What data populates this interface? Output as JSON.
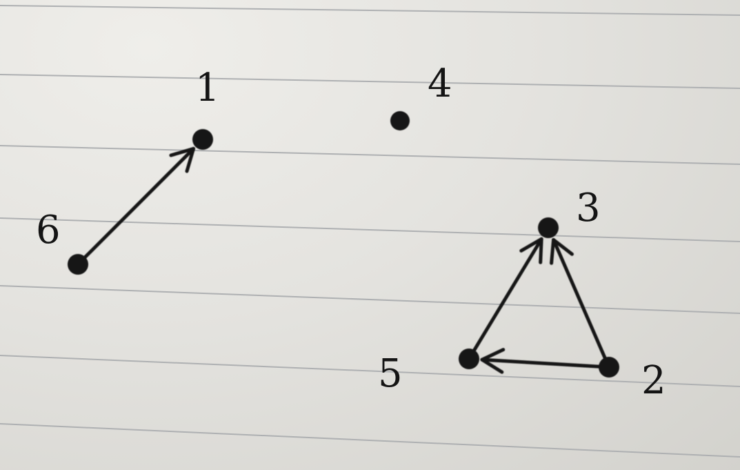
{
  "diagram": {
    "type": "directed-graph",
    "nodes": [
      {
        "id": "1",
        "label": "1"
      },
      {
        "id": "2",
        "label": "2"
      },
      {
        "id": "3",
        "label": "3"
      },
      {
        "id": "4",
        "label": "4"
      },
      {
        "id": "5",
        "label": "5"
      },
      {
        "id": "6",
        "label": "6"
      }
    ],
    "edges": [
      {
        "from": "6",
        "to": "1"
      },
      {
        "from": "5",
        "to": "3"
      },
      {
        "from": "2",
        "to": "3"
      },
      {
        "from": "2",
        "to": "5"
      }
    ],
    "colors": {
      "paper": "#e6e5e1",
      "rule_line": "#aeb0b2",
      "ink": "#141414"
    }
  }
}
